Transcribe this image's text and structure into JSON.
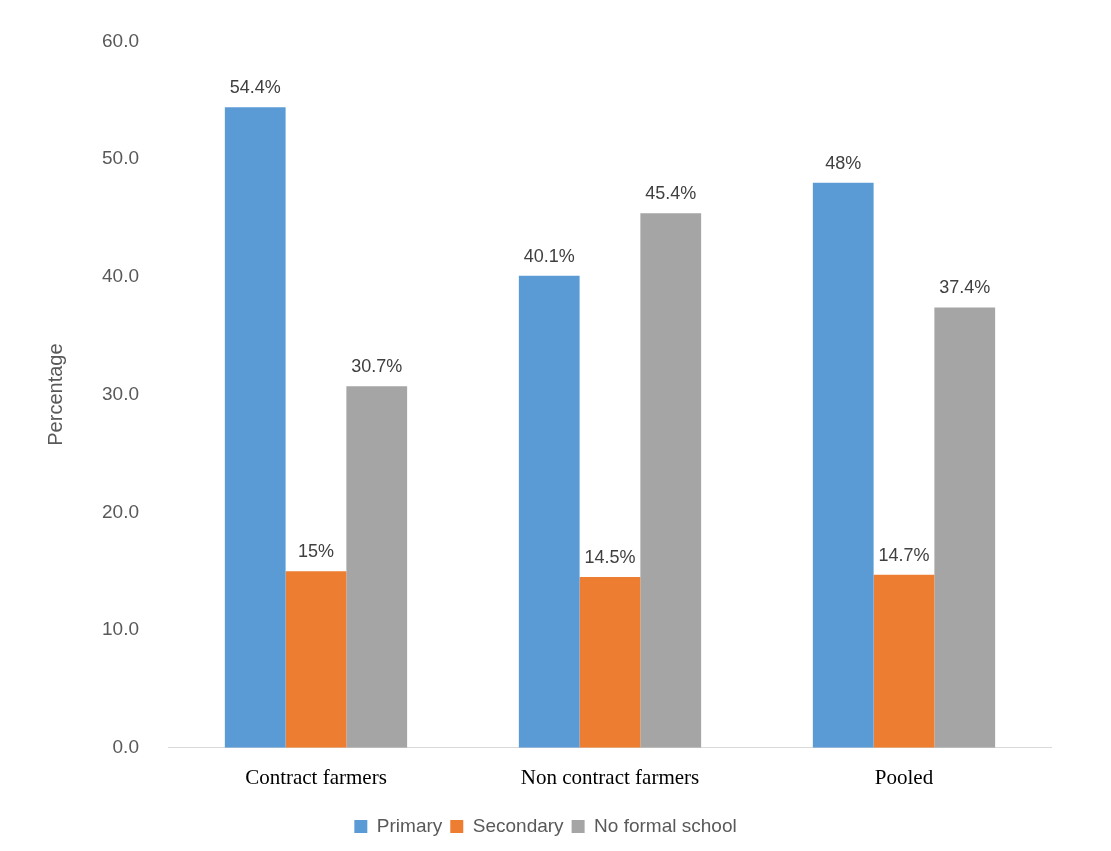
{
  "chart_data": {
    "type": "bar",
    "ylabel": "Percentage",
    "categories": [
      "Contract farmers",
      "Non contract farmers",
      "Pooled"
    ],
    "series": [
      {
        "name": "Primary",
        "color": "#5b9bd5",
        "values": [
          54.4,
          40.1,
          48
        ],
        "value_labels": [
          "54.4%",
          "40.1%",
          "48%"
        ]
      },
      {
        "name": "Secondary",
        "color": "#ed7d31",
        "values": [
          15,
          14.5,
          14.7
        ],
        "value_labels": [
          "15%",
          "14.5%",
          "14.7%"
        ]
      },
      {
        "name": "No formal school",
        "color": "#a5a5a5",
        "values": [
          30.7,
          45.4,
          37.4
        ],
        "value_labels": [
          "30.7%",
          "45.4%",
          "37.4%"
        ]
      }
    ],
    "ylim": [
      0,
      60
    ],
    "yticks": [
      {
        "value": 0,
        "label": "0.0"
      },
      {
        "value": 10,
        "label": "10.0"
      },
      {
        "value": 20,
        "label": "20.0"
      },
      {
        "value": 30,
        "label": "30.0"
      },
      {
        "value": 40,
        "label": "40.0"
      },
      {
        "value": 50,
        "label": "50.0"
      },
      {
        "value": 60,
        "label": "60.0"
      }
    ],
    "grid": false,
    "legend": "bottom"
  }
}
